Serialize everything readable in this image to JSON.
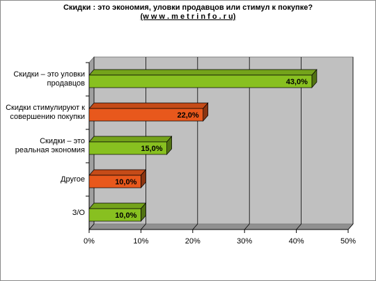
{
  "chart_data": {
    "type": "bar3d_horizontal",
    "title": "Скидки : это  экономия, уловки продавцов или стимул к покупке?",
    "subtitle": "(w w w . m e t r i n f o . r u)",
    "categories": [
      "Скидки – это уловки продавцов",
      "Скидки стимулируют к совершению покупки",
      "Скидки – это реальная экономия",
      "Другое",
      "З/О"
    ],
    "values": [
      43,
      22,
      15,
      10,
      10
    ],
    "value_labels": [
      "43,0%",
      "22,0%",
      "15,0%",
      "10,0%",
      "10,0%"
    ],
    "colors": [
      "#88c020",
      "#e8581c",
      "#88c020",
      "#e8581c",
      "#88c020"
    ],
    "xlim": [
      0,
      50
    ],
    "xticks": [
      {
        "value": 0,
        "label": "0%"
      },
      {
        "value": 10,
        "label": "10%"
      },
      {
        "value": 20,
        "label": "20%"
      },
      {
        "value": 30,
        "label": "30%"
      },
      {
        "value": 40,
        "label": "40%"
      },
      {
        "value": 50,
        "label": "50%"
      }
    ],
    "grid": true
  }
}
